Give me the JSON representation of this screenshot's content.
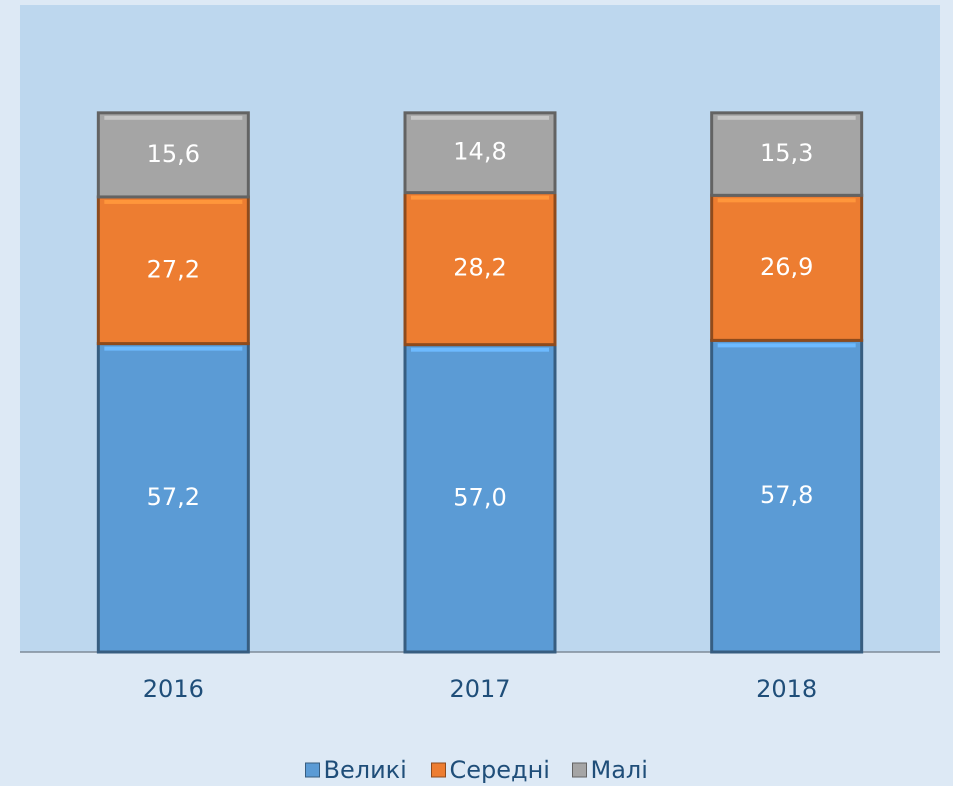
{
  "chart_data": {
    "type": "bar",
    "stacked": true,
    "categories": [
      "2016",
      "2017",
      "2018"
    ],
    "series": [
      {
        "name": "Великі",
        "color": "#5b9bd5",
        "values": [
          57.2,
          57.0,
          57.8
        ],
        "value_labels": [
          "57,2",
          "57,0",
          "57,8"
        ]
      },
      {
        "name": "Середні",
        "color": "#ed7d31",
        "values": [
          27.2,
          28.2,
          26.9
        ],
        "value_labels": [
          "27,2",
          "28,2",
          "26,9"
        ]
      },
      {
        "name": "Малі",
        "color": "#a5a5a5",
        "values": [
          15.6,
          14.8,
          15.3
        ],
        "value_labels": [
          "15,6",
          "14,8",
          "15,3"
        ]
      }
    ],
    "ylim": [
      0,
      120
    ],
    "legend": "bottom"
  }
}
